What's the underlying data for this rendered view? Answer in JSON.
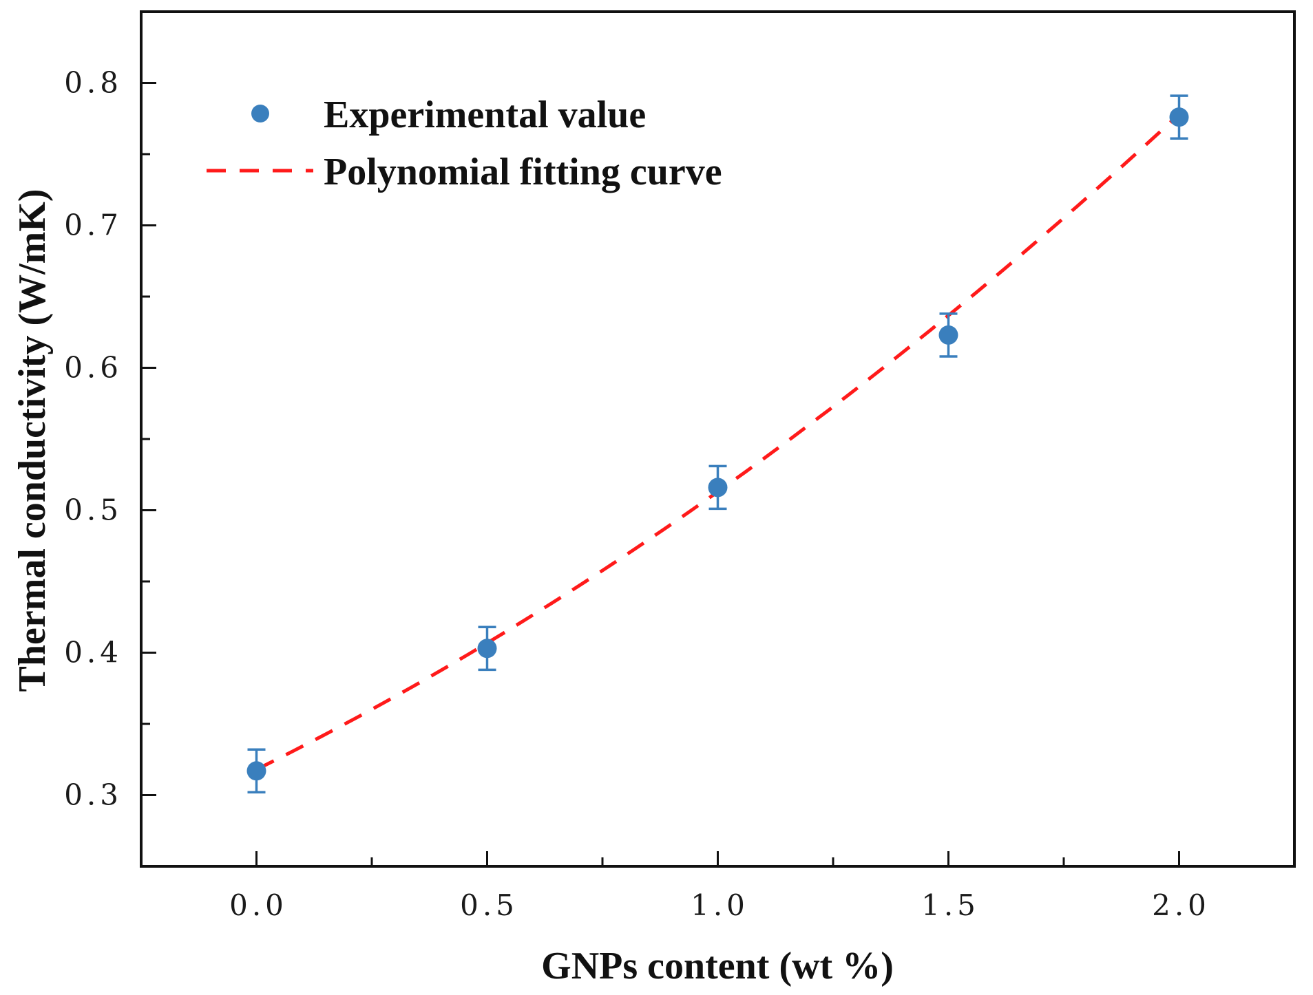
{
  "chart_data": {
    "type": "scatter",
    "title": "",
    "xlabel": "GNPs content (wt %)",
    "ylabel": "Thermal conductivity (W/mK)",
    "xlim": [
      -0.25,
      2.25
    ],
    "ylim": [
      0.25,
      0.85
    ],
    "x_ticks": [
      0.0,
      0.5,
      1.0,
      1.5,
      2.0
    ],
    "x_tick_labels": [
      "0.0",
      "0.5",
      "1.0",
      "1.5",
      "2.0"
    ],
    "y_ticks": [
      0.3,
      0.4,
      0.5,
      0.6,
      0.7,
      0.8
    ],
    "y_tick_labels": [
      "0.3",
      "0.4",
      "0.5",
      "0.6",
      "0.7",
      "0.8"
    ],
    "grid": false,
    "legend_position": "top-left",
    "series": [
      {
        "name": "Experimental value",
        "kind": "scatter",
        "color": "#3a7fbd",
        "x": [
          0.0,
          0.5,
          1.0,
          1.5,
          2.0
        ],
        "y": [
          0.317,
          0.403,
          0.516,
          0.623,
          0.776
        ],
        "error": [
          0.015,
          0.015,
          0.015,
          0.015,
          0.015
        ]
      },
      {
        "name": "Polynomial fitting curve",
        "kind": "line",
        "style": "dashed",
        "color": "#ff1a1a",
        "polynomial": [
          0.318,
          0.16,
          0.035
        ]
      }
    ]
  }
}
